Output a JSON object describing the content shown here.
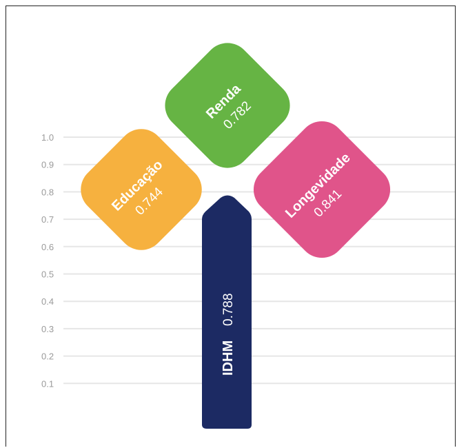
{
  "chart_data": {
    "type": "bar",
    "title": "",
    "xlabel": "",
    "ylabel": "",
    "ylim": [
      0,
      1.0
    ],
    "grid": true,
    "y_ticks": [
      "1.0",
      "0.9",
      "0.8",
      "0.7",
      "0.6",
      "0.5",
      "0.4",
      "0.3",
      "0.2",
      "0.1"
    ],
    "stem": {
      "label": "IDHM",
      "value": 0.788,
      "value_text": "0.788",
      "color": "#1c2a63"
    },
    "petals": [
      {
        "label": "Educação",
        "value": 0.744,
        "value_text": "0.744",
        "color": "#f6b13f"
      },
      {
        "label": "Renda",
        "value": 0.782,
        "value_text": "0.782",
        "color": "#66b444"
      },
      {
        "label": "Longevidade",
        "value": 0.841,
        "value_text": "0.841",
        "color": "#e0548a"
      }
    ]
  }
}
